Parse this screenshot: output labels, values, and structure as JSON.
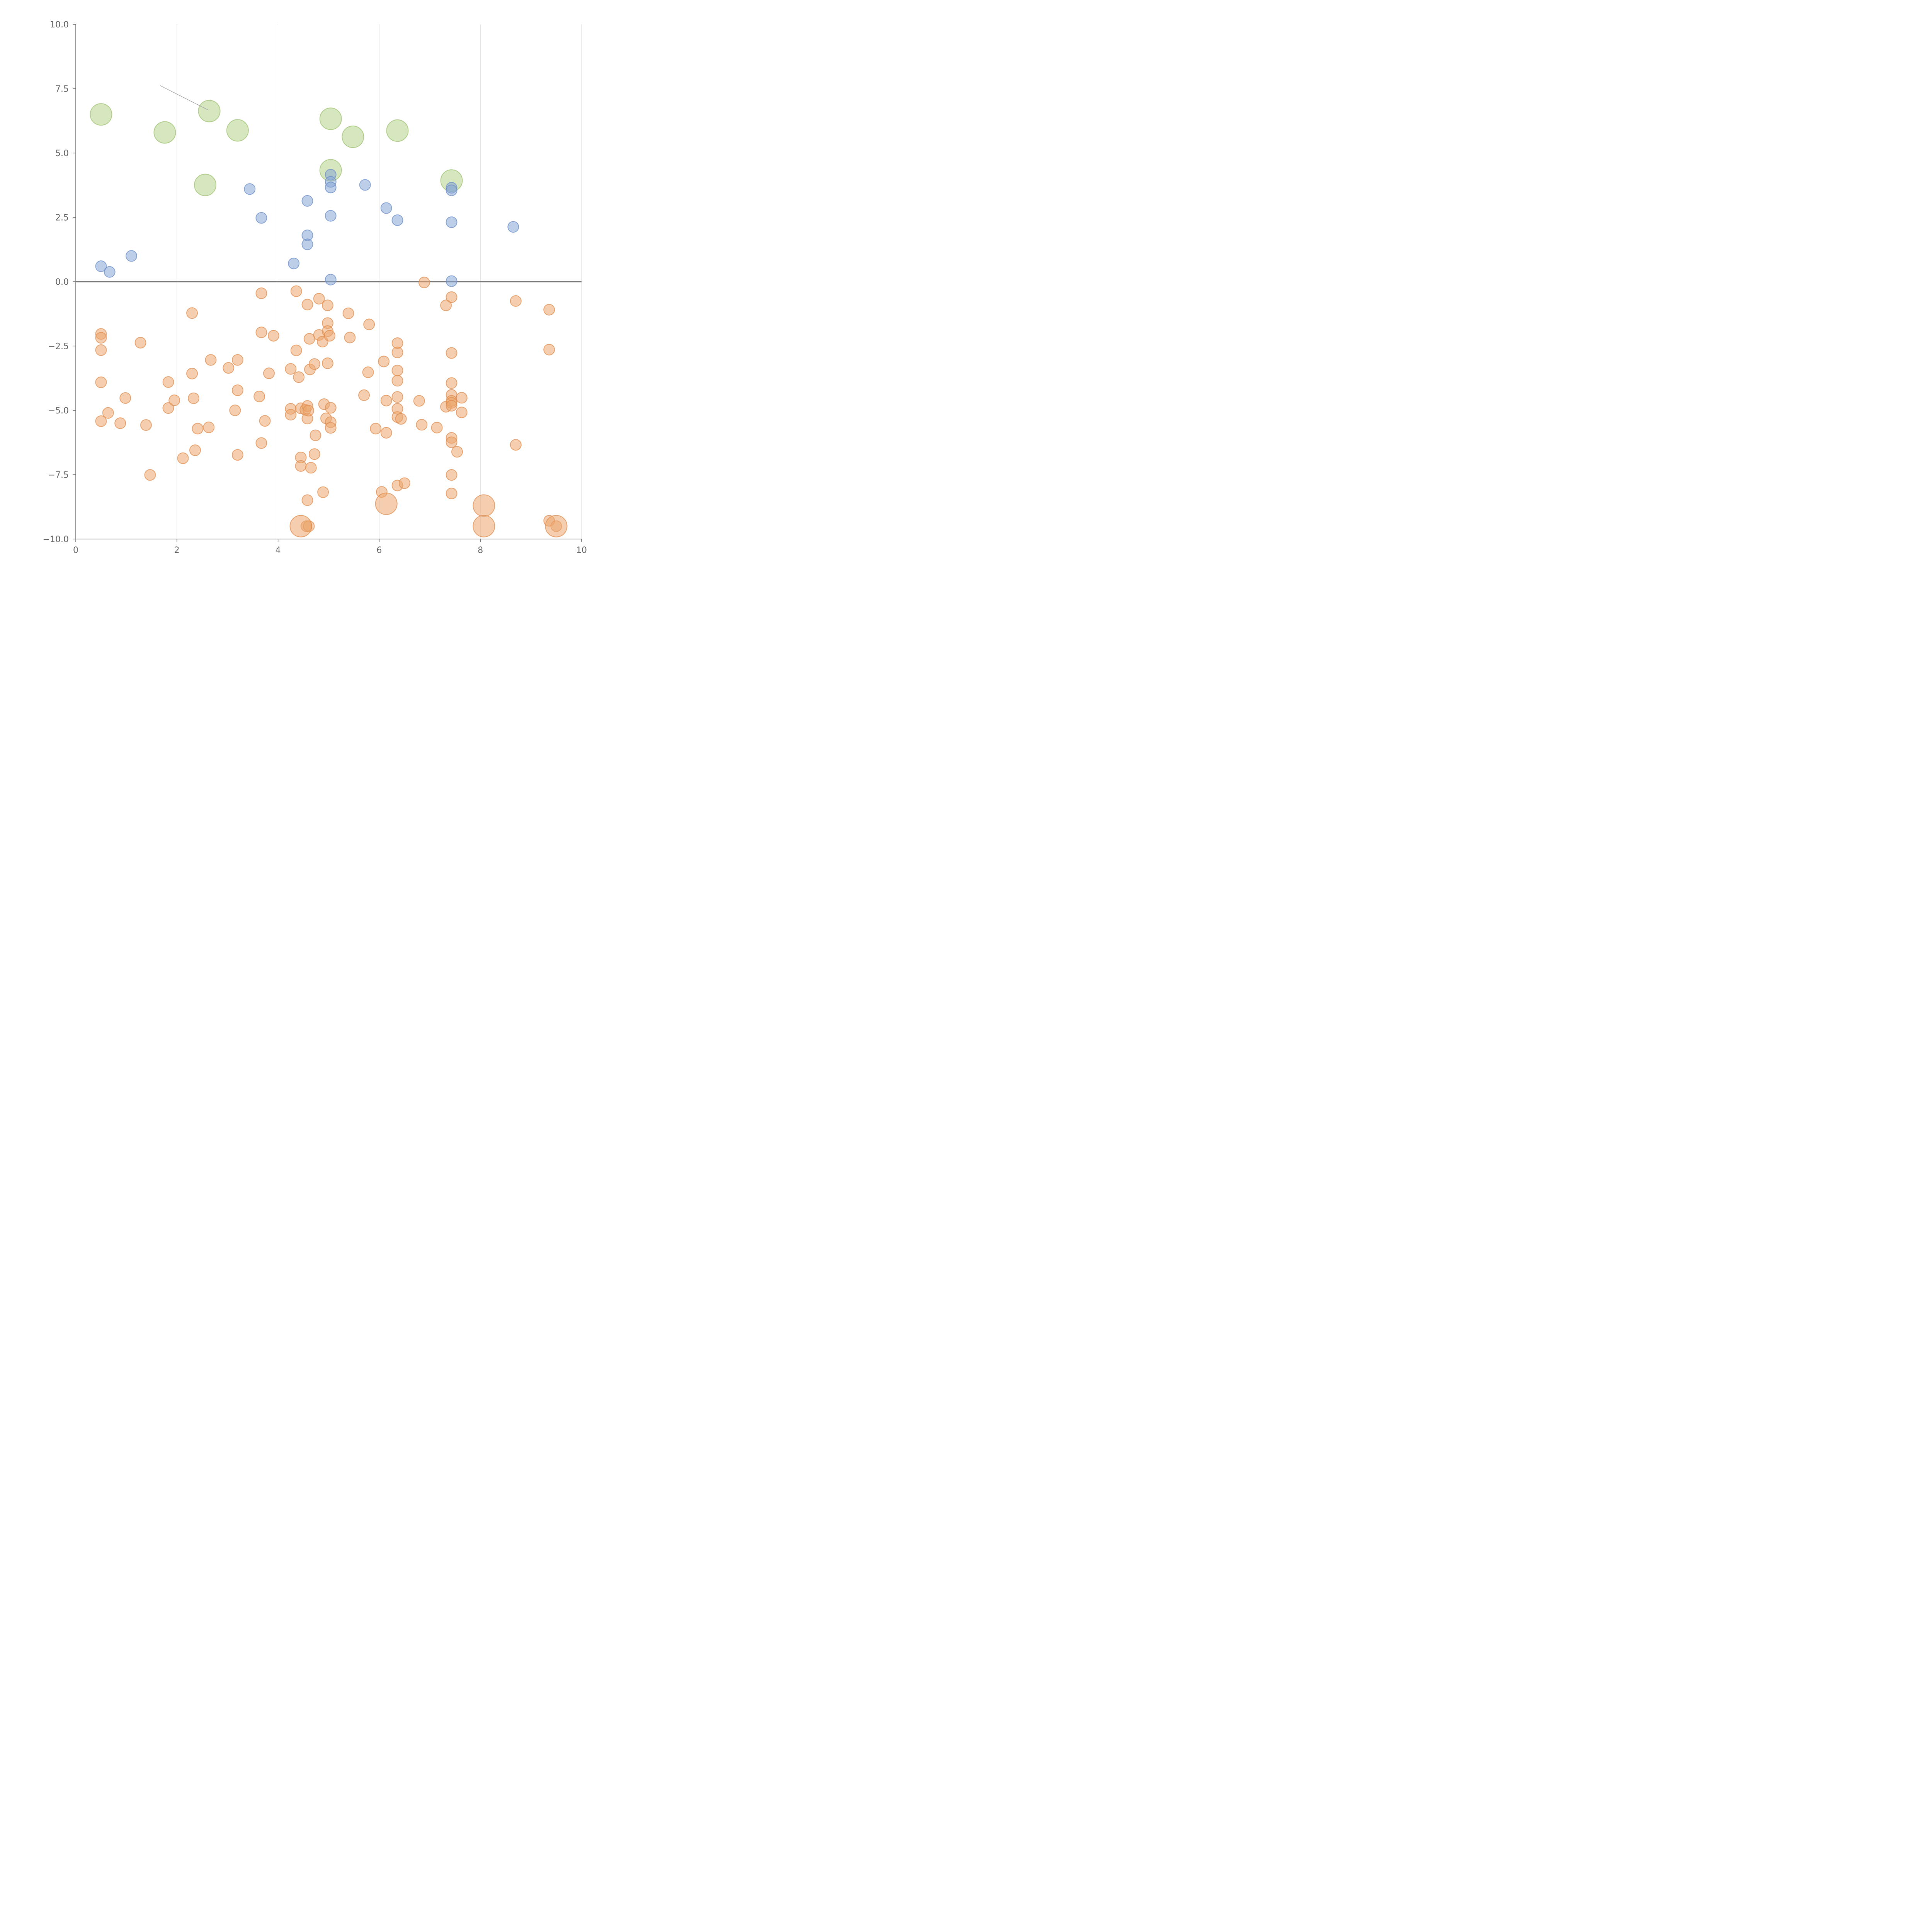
{
  "chart_data": {
    "type": "scatter",
    "title": "",
    "xlabel": "",
    "ylabel": "",
    "xlim": [
      0,
      10
    ],
    "ylim": [
      -10,
      10
    ],
    "x_ticks": [
      0,
      2,
      4,
      6,
      8,
      10
    ],
    "x_tick_labels": [
      "0",
      "2",
      "4",
      "6",
      "8",
      "10"
    ],
    "y_ticks": [
      10,
      7.5,
      5,
      2.5,
      0,
      -2.5,
      -5,
      -7.5,
      -10
    ],
    "y_tick_labels": [
      "10.0",
      "7.5",
      "5.0",
      "2.5",
      "0.0",
      "−2.5",
      "−5.0",
      "−7.5",
      "−10.0"
    ],
    "grid_x": true,
    "grid_y": false,
    "zero_line": 0,
    "colors": {
      "green": "#b5d18a",
      "blue": "#86a5d6",
      "orange": "#eba56e",
      "green_stroke": "#9dbf6d",
      "blue_stroke": "#6a8cc4",
      "orange_stroke": "#e08a4a"
    },
    "series": [
      {
        "name": "green",
        "color": "#b5d18a",
        "size": "large",
        "points": [
          [
            0.5,
            6.5
          ],
          [
            1.76,
            5.8
          ],
          [
            2.64,
            6.63
          ],
          [
            3.2,
            5.88
          ],
          [
            5.04,
            6.33
          ],
          [
            5.48,
            5.63
          ],
          [
            6.36,
            5.87
          ],
          [
            2.56,
            3.76
          ],
          [
            5.04,
            4.33
          ],
          [
            7.43,
            3.93
          ]
        ]
      },
      {
        "name": "blue",
        "color": "#86a5d6",
        "size": "small",
        "points": [
          [
            0.5,
            0.6
          ],
          [
            0.67,
            0.38
          ],
          [
            1.1,
            1.0
          ],
          [
            3.44,
            3.6
          ],
          [
            3.67,
            2.48
          ],
          [
            4.31,
            0.71
          ],
          [
            4.58,
            3.14
          ],
          [
            4.58,
            1.8
          ],
          [
            4.58,
            1.45
          ],
          [
            5.04,
            4.16
          ],
          [
            5.04,
            3.88
          ],
          [
            5.04,
            3.66
          ],
          [
            5.04,
            2.56
          ],
          [
            5.04,
            0.08
          ],
          [
            5.72,
            3.76
          ],
          [
            6.14,
            2.86
          ],
          [
            6.36,
            2.39
          ],
          [
            7.43,
            3.65
          ],
          [
            7.43,
            3.55
          ],
          [
            7.43,
            2.31
          ],
          [
            7.43,
            0.02
          ],
          [
            8.65,
            2.13
          ]
        ]
      },
      {
        "name": "orange",
        "color": "#eba56e",
        "size": "small",
        "points": [
          [
            0.5,
            -2.03
          ],
          [
            0.5,
            -2.18
          ],
          [
            0.5,
            -2.66
          ],
          [
            0.5,
            -3.91
          ],
          [
            0.5,
            -5.42
          ],
          [
            0.64,
            -5.1
          ],
          [
            0.88,
            -5.5
          ],
          [
            0.98,
            -4.52
          ],
          [
            1.28,
            -2.37
          ],
          [
            1.39,
            -5.57
          ],
          [
            1.47,
            -7.51
          ],
          [
            1.83,
            -3.9
          ],
          [
            1.83,
            -4.91
          ],
          [
            1.95,
            -4.61
          ],
          [
            2.12,
            -6.86
          ],
          [
            2.3,
            -1.22
          ],
          [
            2.3,
            -3.57
          ],
          [
            2.33,
            -4.53
          ],
          [
            2.36,
            -6.55
          ],
          [
            2.41,
            -5.71
          ],
          [
            2.63,
            -5.66
          ],
          [
            2.67,
            -3.04
          ],
          [
            3.02,
            -3.35
          ],
          [
            3.15,
            -5.0
          ],
          [
            3.2,
            -3.04
          ],
          [
            3.2,
            -4.22
          ],
          [
            3.2,
            -6.73
          ],
          [
            3.63,
            -4.46
          ],
          [
            3.67,
            -0.45
          ],
          [
            3.67,
            -1.97
          ],
          [
            3.67,
            -6.27
          ],
          [
            3.74,
            -5.41
          ],
          [
            3.82,
            -3.56
          ],
          [
            3.91,
            -2.1
          ],
          [
            4.25,
            -3.39
          ],
          [
            4.25,
            -4.94
          ],
          [
            4.25,
            -5.17
          ],
          [
            4.36,
            -0.37
          ],
          [
            4.36,
            -2.67
          ],
          [
            4.41,
            -3.71
          ],
          [
            4.45,
            -6.83
          ],
          [
            4.45,
            -7.16
          ],
          [
            4.45,
            -4.92
          ],
          [
            4.54,
            -4.98
          ],
          [
            4.56,
            -9.5
          ],
          [
            4.58,
            -0.89
          ],
          [
            4.58,
            -4.83
          ],
          [
            4.58,
            -5.32
          ],
          [
            4.58,
            -8.49
          ],
          [
            4.6,
            -5.01
          ],
          [
            4.61,
            -9.5
          ],
          [
            4.62,
            -2.22
          ],
          [
            4.63,
            -3.41
          ],
          [
            4.65,
            -7.23
          ],
          [
            4.72,
            -3.2
          ],
          [
            4.72,
            -6.7
          ],
          [
            4.74,
            -5.97
          ],
          [
            4.81,
            -0.66
          ],
          [
            4.81,
            -2.07
          ],
          [
            4.88,
            -2.33
          ],
          [
            4.89,
            -8.18
          ],
          [
            4.91,
            -4.76
          ],
          [
            4.95,
            -5.31
          ],
          [
            4.98,
            -0.92
          ],
          [
            4.98,
            -1.61
          ],
          [
            4.98,
            -1.92
          ],
          [
            4.98,
            -3.17
          ],
          [
            5.02,
            -2.1
          ],
          [
            5.04,
            -4.9
          ],
          [
            5.04,
            -5.46
          ],
          [
            5.04,
            -5.68
          ],
          [
            5.39,
            -1.23
          ],
          [
            5.42,
            -2.17
          ],
          [
            5.7,
            -4.41
          ],
          [
            5.78,
            -3.52
          ],
          [
            5.8,
            -1.66
          ],
          [
            5.93,
            -5.71
          ],
          [
            6.05,
            -8.17
          ],
          [
            6.09,
            -3.1
          ],
          [
            6.14,
            -4.62
          ],
          [
            6.14,
            -5.87
          ],
          [
            6.36,
            -2.39
          ],
          [
            6.36,
            -2.75
          ],
          [
            6.36,
            -3.45
          ],
          [
            6.36,
            -3.85
          ],
          [
            6.36,
            -4.48
          ],
          [
            6.36,
            -4.94
          ],
          [
            6.36,
            -5.26
          ],
          [
            6.36,
            -7.92
          ],
          [
            6.43,
            -5.33
          ],
          [
            6.5,
            -7.83
          ],
          [
            6.79,
            -4.63
          ],
          [
            6.84,
            -5.56
          ],
          [
            6.89,
            -0.03
          ],
          [
            7.14,
            -5.67
          ],
          [
            7.32,
            -0.92
          ],
          [
            7.32,
            -4.86
          ],
          [
            7.43,
            -0.6
          ],
          [
            7.43,
            -2.77
          ],
          [
            7.43,
            -3.94
          ],
          [
            7.43,
            -4.4
          ],
          [
            7.43,
            -4.63
          ],
          [
            7.43,
            -4.71
          ],
          [
            7.43,
            -4.82
          ],
          [
            7.43,
            -6.07
          ],
          [
            7.43,
            -6.24
          ],
          [
            7.43,
            -7.51
          ],
          [
            7.43,
            -8.23
          ],
          [
            7.54,
            -6.61
          ],
          [
            7.63,
            -4.51
          ],
          [
            7.63,
            -5.08
          ],
          [
            8.7,
            -0.75
          ],
          [
            8.7,
            -6.34
          ],
          [
            9.36,
            -1.09
          ],
          [
            9.36,
            -2.64
          ],
          [
            9.36,
            -9.29
          ],
          [
            9.5,
            -9.5
          ]
        ]
      },
      {
        "name": "orange-large",
        "color": "#eba56e",
        "size": "large",
        "points": [
          [
            4.45,
            -9.5
          ],
          [
            6.14,
            -8.63
          ],
          [
            8.07,
            -8.7
          ],
          [
            8.07,
            -9.5
          ],
          [
            9.5,
            -9.5
          ]
        ]
      }
    ],
    "annotations": [
      {
        "type": "leader-line",
        "from": [
          1.67,
          7.62
        ],
        "to": [
          2.62,
          6.67
        ]
      }
    ]
  }
}
